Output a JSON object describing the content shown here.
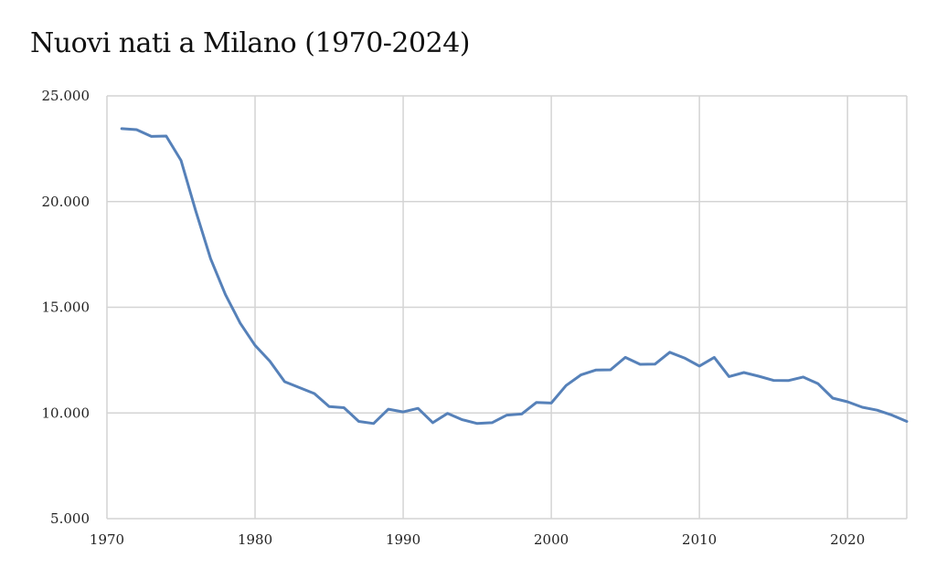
{
  "chart_data": {
    "type": "line",
    "title": "Nuovi nati a Milano (1970-2024)",
    "xlabel": "",
    "ylabel": "",
    "xlim": [
      1970,
      2024
    ],
    "ylim": [
      5000,
      25000
    ],
    "x_ticks": [
      1970,
      1980,
      1990,
      2000,
      2010,
      2020
    ],
    "x_tick_labels": [
      "1970",
      "1980",
      "1990",
      "2000",
      "2010",
      "2020"
    ],
    "y_ticks": [
      5000,
      10000,
      15000,
      20000,
      25000
    ],
    "y_tick_labels": [
      "5.000",
      "10.000",
      "15.000",
      "20.000",
      "25.000"
    ],
    "grid": true,
    "legend": "none",
    "line_color": "#5681b9",
    "series": [
      {
        "x": [
          1971,
          1972,
          1973,
          1974,
          1975,
          1976,
          1977,
          1978,
          1979,
          1980,
          1981,
          1982,
          1983,
          1984,
          1985,
          1986,
          1987,
          1988,
          1989,
          1990,
          1991,
          1992,
          1993,
          1994,
          1995,
          1996,
          1997,
          1998,
          1999,
          2000,
          2001,
          2002,
          2003,
          2004,
          2005,
          2006,
          2007,
          2008,
          2009,
          2010,
          2011,
          2012,
          2013,
          2014,
          2015,
          2016,
          2017,
          2018,
          2019,
          2020,
          2021,
          2022,
          2023,
          2024
        ],
        "values": [
          23450,
          23400,
          23080,
          23100,
          21950,
          19550,
          17300,
          15600,
          14250,
          13200,
          12450,
          11480,
          11200,
          10920,
          10300,
          10250,
          9600,
          9500,
          10180,
          10050,
          10220,
          9540,
          9980,
          9680,
          9500,
          9540,
          9900,
          9950,
          10500,
          10470,
          11300,
          11800,
          12030,
          12040,
          12630,
          12300,
          12310,
          12870,
          12600,
          12220,
          12630,
          11720,
          11910,
          11740,
          11540,
          11530,
          11700,
          11390,
          10700,
          10530,
          10270,
          10130,
          9900,
          9600
        ]
      }
    ]
  }
}
